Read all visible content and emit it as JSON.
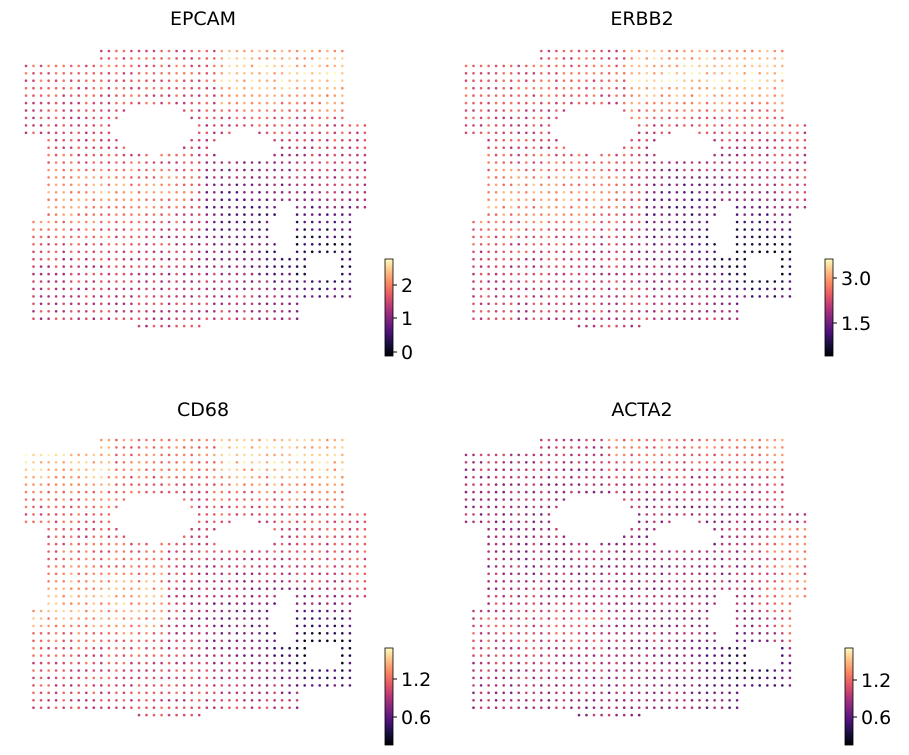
{
  "figure": {
    "panels": [
      {
        "title": "EPCAM",
        "colorbar": {
          "ticks": [
            "2",
            "1",
            "0"
          ]
        }
      },
      {
        "title": "ERBB2",
        "colorbar": {
          "ticks": [
            "3.0",
            "1.5"
          ]
        }
      },
      {
        "title": "CD68",
        "colorbar": {
          "ticks": [
            "1.2",
            "0.6"
          ]
        }
      },
      {
        "title": "ACTA2",
        "colorbar": {
          "ticks": [
            "1.2",
            "0.6"
          ]
        }
      }
    ]
  },
  "chart_data": [
    {
      "type": "scatter",
      "title": "EPCAM",
      "colormap": "magma",
      "color_range": [
        0,
        2.6
      ],
      "colorbar_ticks": [
        0,
        1,
        2
      ],
      "pattern": "epcam"
    },
    {
      "type": "scatter",
      "title": "ERBB2",
      "colormap": "magma",
      "color_range": [
        0.6,
        3.4
      ],
      "colorbar_ticks": [
        1.5,
        3.0
      ],
      "pattern": "erbb2"
    },
    {
      "type": "scatter",
      "title": "CD68",
      "colormap": "magma",
      "color_range": [
        0.2,
        1.6
      ],
      "colorbar_ticks": [
        0.6,
        1.2
      ],
      "pattern": "cd68"
    },
    {
      "type": "scatter",
      "title": "ACTA2",
      "colormap": "magma",
      "color_range": [
        0.2,
        1.6
      ],
      "colorbar_ticks": [
        0.6,
        1.2
      ],
      "pattern": "acta2"
    }
  ]
}
